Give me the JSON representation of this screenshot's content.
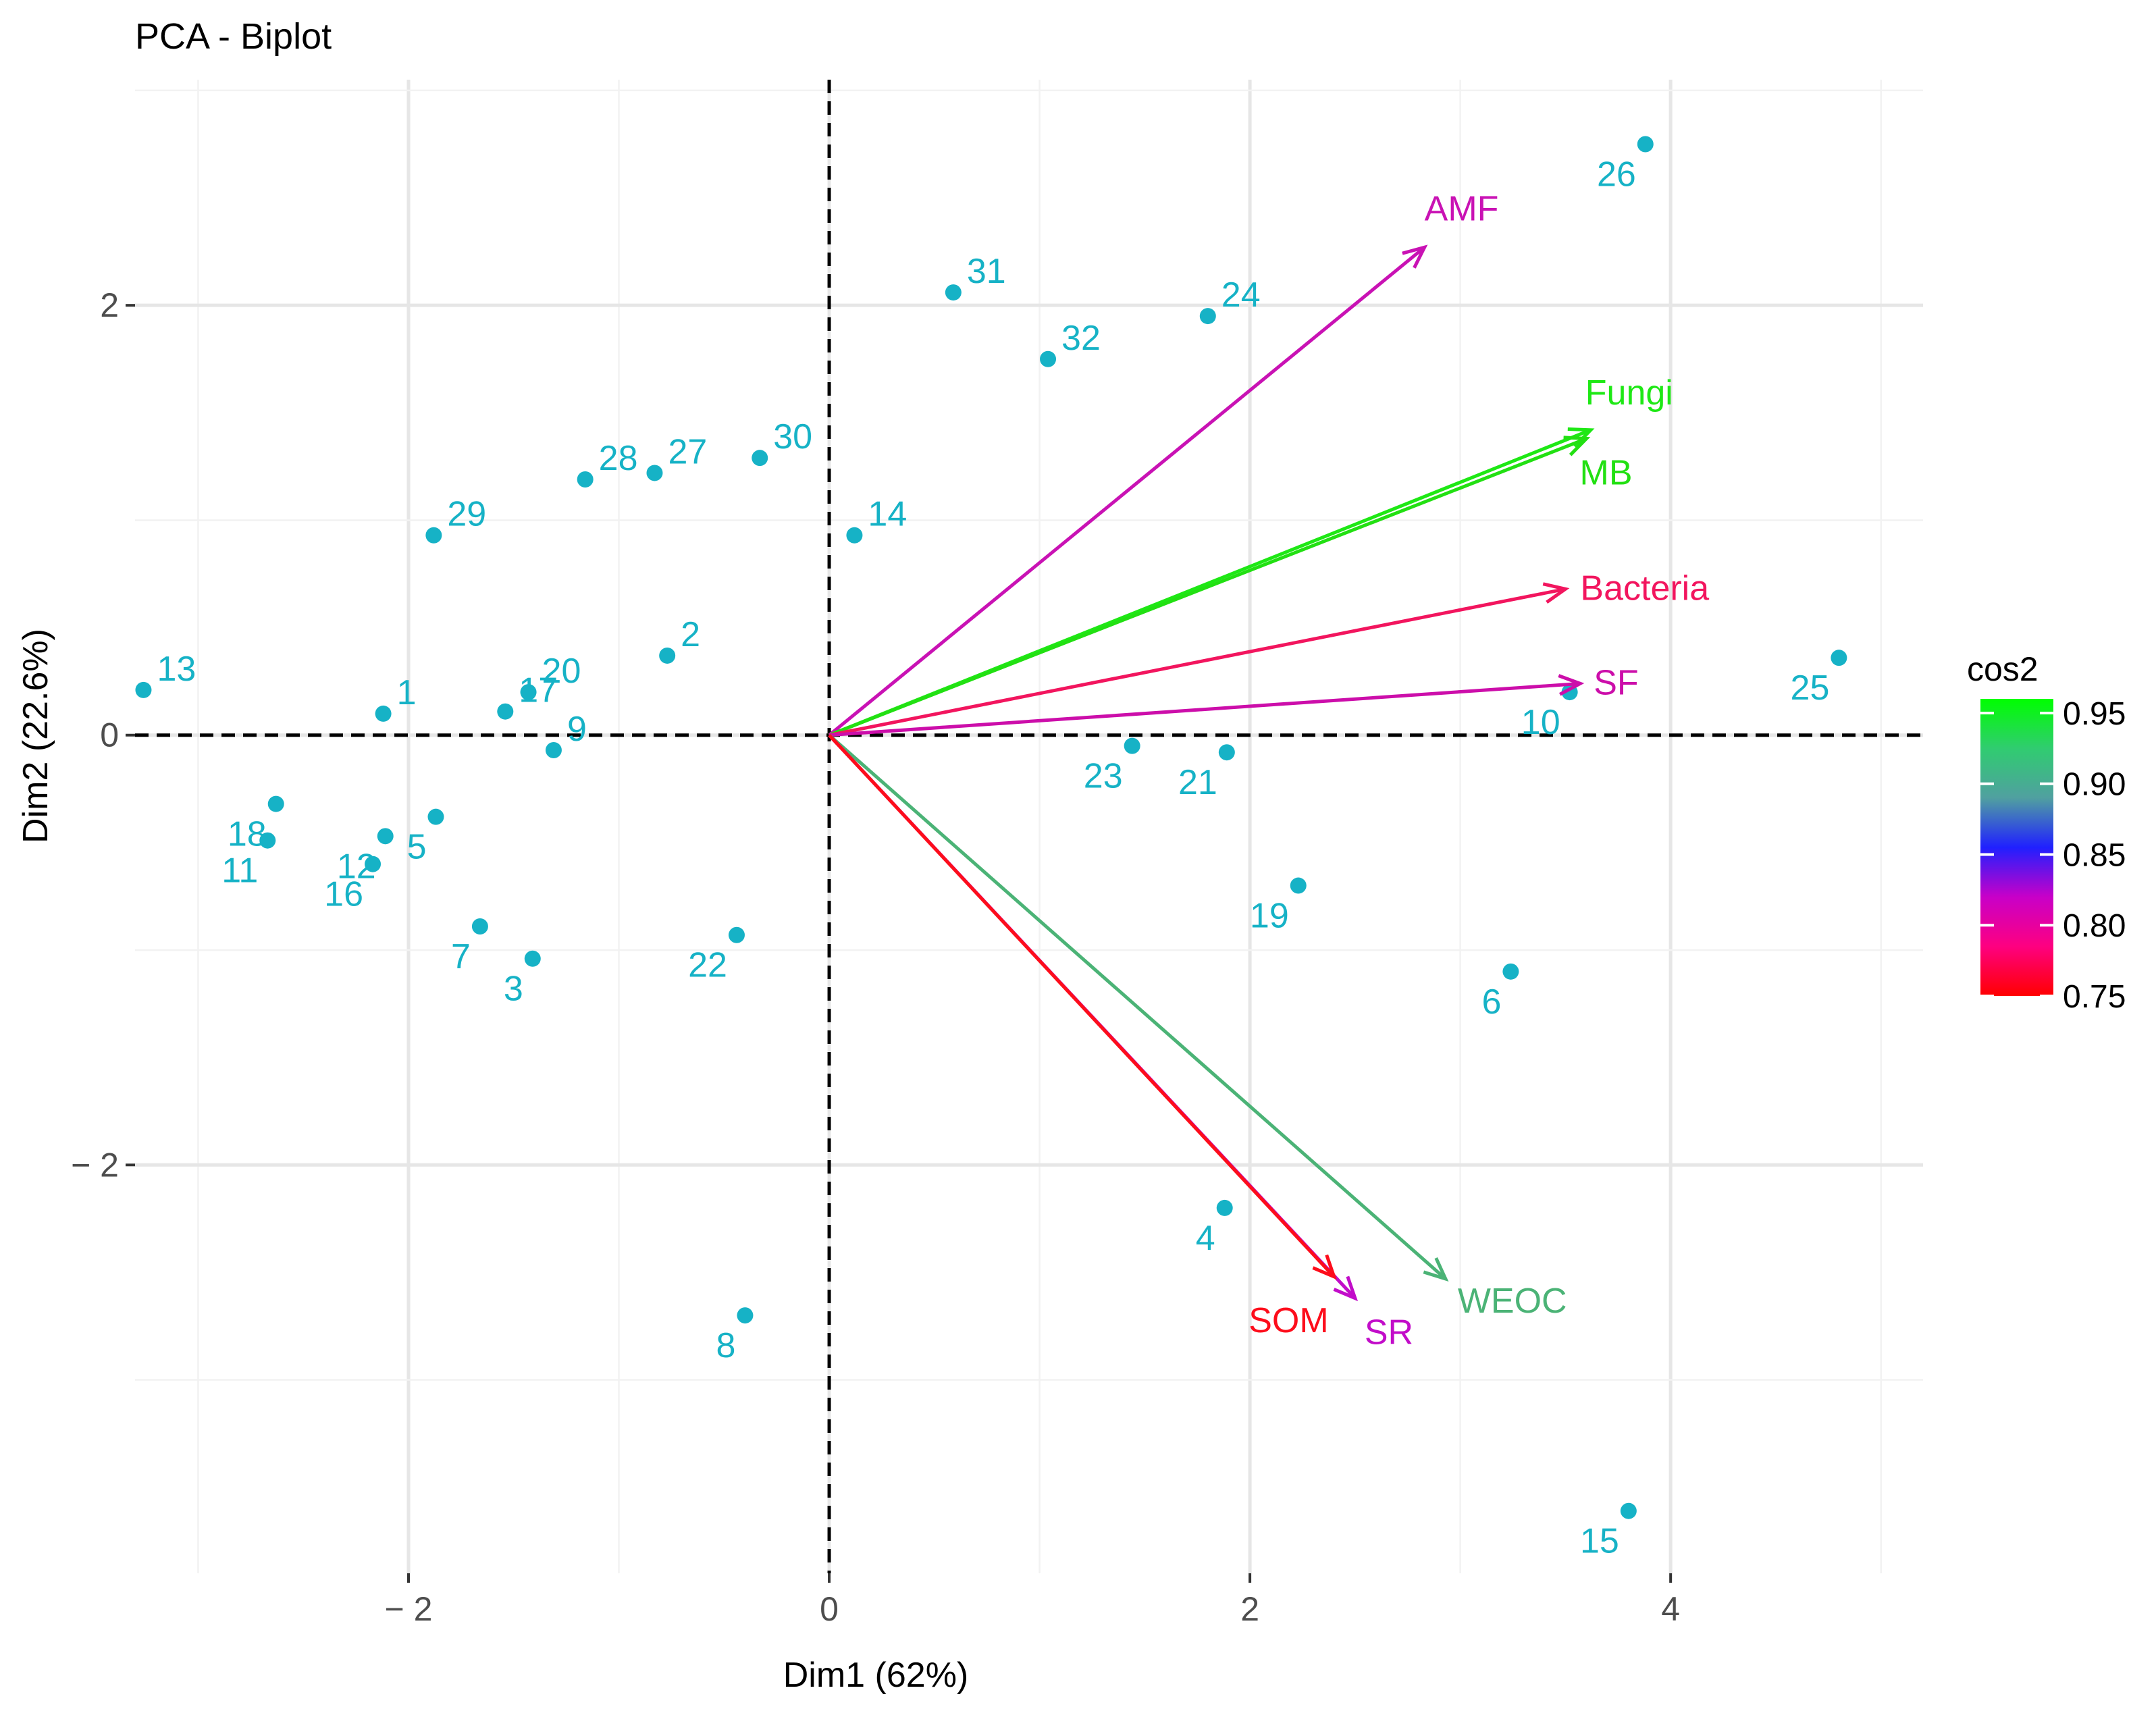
{
  "chart_data": {
    "type": "scatter",
    "title": "PCA - Biplot",
    "xlabel": "Dim1 (62%)",
    "ylabel": "Dim2 (22.6%)",
    "xlim": [
      -3.3,
      5.2
    ],
    "ylim": [
      -3.9,
      3.05
    ],
    "x_ticks": [
      {
        "value": -2,
        "label": "− 2"
      },
      {
        "value": 0,
        "label": "0"
      },
      {
        "value": 2,
        "label": "2"
      },
      {
        "value": 4,
        "label": "4"
      }
    ],
    "y_ticks": [
      {
        "value": 2,
        "label": "2"
      },
      {
        "value": 0,
        "label": "0"
      },
      {
        "value": -2,
        "label": "− 2"
      }
    ],
    "grid": true,
    "observations": [
      {
        "label": "1",
        "x": -2.12,
        "y": 0.1
      },
      {
        "label": "2",
        "x": -0.77,
        "y": 0.37
      },
      {
        "label": "3",
        "x": -1.41,
        "y": -1.04
      },
      {
        "label": "4",
        "x": 1.88,
        "y": -2.2
      },
      {
        "label": "5",
        "x": -1.87,
        "y": -0.38
      },
      {
        "label": "6",
        "x": 3.24,
        "y": -1.1
      },
      {
        "label": "7",
        "x": -1.66,
        "y": -0.89
      },
      {
        "label": "8",
        "x": -0.4,
        "y": -2.7
      },
      {
        "label": "9",
        "x": -1.31,
        "y": -0.07
      },
      {
        "label": "10",
        "x": 3.52,
        "y": 0.2
      },
      {
        "label": "11",
        "x": -2.67,
        "y": -0.49
      },
      {
        "label": "12",
        "x": -2.11,
        "y": -0.47
      },
      {
        "label": "13",
        "x": -3.26,
        "y": 0.21
      },
      {
        "label": "14",
        "x": 0.12,
        "y": 0.93
      },
      {
        "label": "15",
        "x": 3.8,
        "y": -3.61
      },
      {
        "label": "16",
        "x": -2.17,
        "y": -0.6
      },
      {
        "label": "17",
        "x": -1.54,
        "y": 0.11
      },
      {
        "label": "18",
        "x": -2.63,
        "y": -0.32
      },
      {
        "label": "19",
        "x": 2.23,
        "y": -0.7
      },
      {
        "label": "20",
        "x": -1.43,
        "y": 0.2
      },
      {
        "label": "21",
        "x": 1.89,
        "y": -0.08
      },
      {
        "label": "22",
        "x": -0.44,
        "y": -0.93
      },
      {
        "label": "23",
        "x": 1.44,
        "y": -0.05
      },
      {
        "label": "24",
        "x": 1.8,
        "y": 1.95
      },
      {
        "label": "25",
        "x": 4.8,
        "y": 0.36
      },
      {
        "label": "26",
        "x": 3.88,
        "y": 2.75
      },
      {
        "label": "27",
        "x": -0.83,
        "y": 1.22
      },
      {
        "label": "28",
        "x": -1.16,
        "y": 1.19
      },
      {
        "label": "29",
        "x": -1.88,
        "y": 0.93
      },
      {
        "label": "30",
        "x": -0.33,
        "y": 1.29
      },
      {
        "label": "31",
        "x": 0.59,
        "y": 2.06
      },
      {
        "label": "32",
        "x": 1.04,
        "y": 1.75
      }
    ],
    "variables": [
      {
        "label": "AMF",
        "x": 2.83,
        "y": 2.27,
        "cos2": 0.815,
        "color": "#c912b4"
      },
      {
        "label": "Fungi",
        "x": 3.62,
        "y": 1.42,
        "cos2": 0.95,
        "color": "#1ee815"
      },
      {
        "label": "MB",
        "x": 3.6,
        "y": 1.38,
        "cos2": 0.945,
        "color": "#22e012"
      },
      {
        "label": "Bacteria",
        "x": 3.5,
        "y": 0.68,
        "cos2": 0.79,
        "color": "#f2155e"
      },
      {
        "label": "SF",
        "x": 3.57,
        "y": 0.24,
        "cos2": 0.815,
        "color": "#cc0eaa"
      },
      {
        "label": "WEOC",
        "x": 2.93,
        "y": -2.53,
        "cos2": 0.925,
        "color": "#4bb376"
      },
      {
        "label": "SR",
        "x": 2.5,
        "y": -2.62,
        "cos2": 0.82,
        "color": "#c20dc9"
      },
      {
        "label": "SOM",
        "x": 2.4,
        "y": -2.52,
        "cos2": 0.755,
        "color": "#fd0d1b"
      }
    ],
    "legend": {
      "title": "cos2",
      "ticks": [
        "0.95",
        "0.90",
        "0.85",
        "0.80",
        "0.75"
      ],
      "range": [
        0.75,
        0.96
      ],
      "position": "right",
      "gradient_colors": [
        "#ff0000",
        "#fe0080",
        "#c800c8",
        "#2020ff",
        "#50a0a0",
        "#30cc70",
        "#00ff00"
      ]
    }
  }
}
